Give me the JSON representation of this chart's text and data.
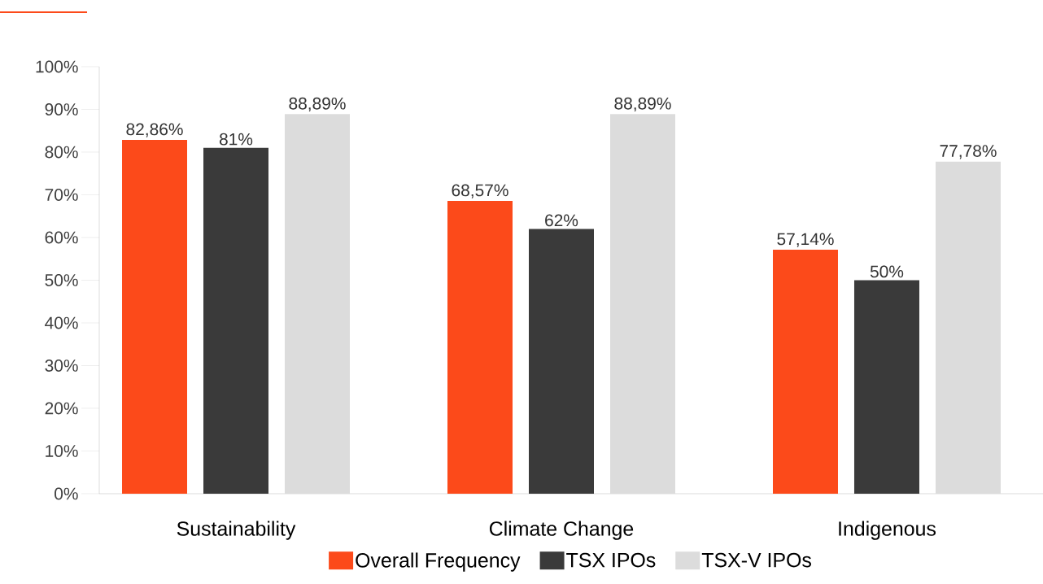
{
  "chart_data": {
    "type": "bar",
    "categories": [
      "Sustainability",
      "Climate Change",
      "Indigenous"
    ],
    "series": [
      {
        "name": "Overall Frequency",
        "color": "#fc4a1a",
        "values": [
          82.86,
          68.57,
          57.14
        ],
        "value_labels": [
          "82,86%",
          "68,57%",
          "57,14%"
        ]
      },
      {
        "name": "TSX IPOs",
        "color": "#3a3a3a",
        "values": [
          81,
          62,
          50
        ],
        "value_labels": [
          "81%",
          "62%",
          "50%"
        ]
      },
      {
        "name": "TSX-V IPOs",
        "color": "#dcdcdc",
        "values": [
          88.89,
          88.89,
          77.78
        ],
        "value_labels": [
          "88,89%",
          "88,89%",
          "77,78%"
        ]
      }
    ],
    "ylim": [
      0,
      100
    ],
    "yticks": [
      {
        "value": 0,
        "label": "0%"
      },
      {
        "value": 10,
        "label": "10%"
      },
      {
        "value": 20,
        "label": "20%"
      },
      {
        "value": 30,
        "label": "30%"
      },
      {
        "value": 40,
        "label": "40%"
      },
      {
        "value": 50,
        "label": "50%"
      },
      {
        "value": 60,
        "label": "60%"
      },
      {
        "value": 70,
        "label": "70%"
      },
      {
        "value": 80,
        "label": "80%"
      },
      {
        "value": 90,
        "label": "90%"
      },
      {
        "value": 100,
        "label": "100%"
      }
    ],
    "grid": false,
    "legend": "bottom"
  }
}
